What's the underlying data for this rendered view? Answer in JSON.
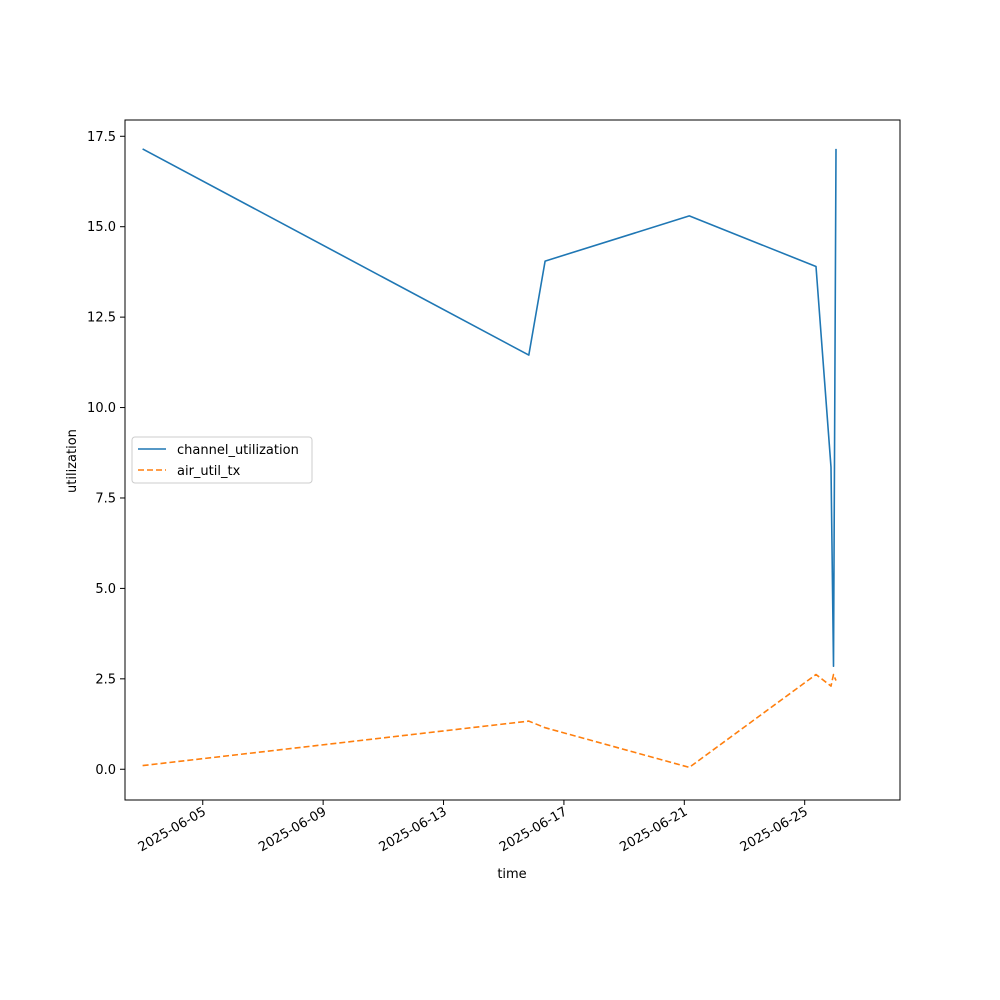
{
  "chart_data": {
    "type": "line",
    "title": "",
    "xlabel": "time",
    "ylabel": "utilization",
    "x_ticks": [
      "2025-06-05",
      "2025-06-09",
      "2025-06-13",
      "2025-06-17",
      "2025-06-21",
      "2025-06-25"
    ],
    "y_ticks": [
      "0.0",
      "2.5",
      "5.0",
      "7.5",
      "10.0",
      "12.5",
      "15.0",
      "17.5"
    ],
    "xlim": [
      "2025-06-02T10:00",
      "2025-06-28T04:00"
    ],
    "ylim": [
      -0.85,
      17.95
    ],
    "legend_position": "center-left",
    "grid": false,
    "series": [
      {
        "name": "channel_utilization",
        "color": "#1f77b4",
        "style": "solid",
        "points": [
          {
            "x": "2025-06-03T00:00",
            "y": 17.15
          },
          {
            "x": "2025-06-15T20:00",
            "y": 11.45
          },
          {
            "x": "2025-06-16T09:00",
            "y": 14.05
          },
          {
            "x": "2025-06-21T04:00",
            "y": 15.3
          },
          {
            "x": "2025-06-25T09:00",
            "y": 13.9
          },
          {
            "x": "2025-06-25T21:00",
            "y": 8.35
          },
          {
            "x": "2025-06-25T23:00",
            "y": 2.85
          },
          {
            "x": "2025-06-26T01:00",
            "y": 17.15
          }
        ]
      },
      {
        "name": "air_util_tx",
        "color": "#ff7f0e",
        "style": "dashed",
        "points": [
          {
            "x": "2025-06-03T00:00",
            "y": 0.1
          },
          {
            "x": "2025-06-15T20:00",
            "y": 1.33
          },
          {
            "x": "2025-06-16T09:00",
            "y": 1.15
          },
          {
            "x": "2025-06-21T04:00",
            "y": 0.05
          },
          {
            "x": "2025-06-25T09:00",
            "y": 2.62
          },
          {
            "x": "2025-06-25T21:00",
            "y": 2.3
          },
          {
            "x": "2025-06-25T23:00",
            "y": 2.62
          },
          {
            "x": "2025-06-26T01:00",
            "y": 2.45
          }
        ]
      }
    ]
  }
}
